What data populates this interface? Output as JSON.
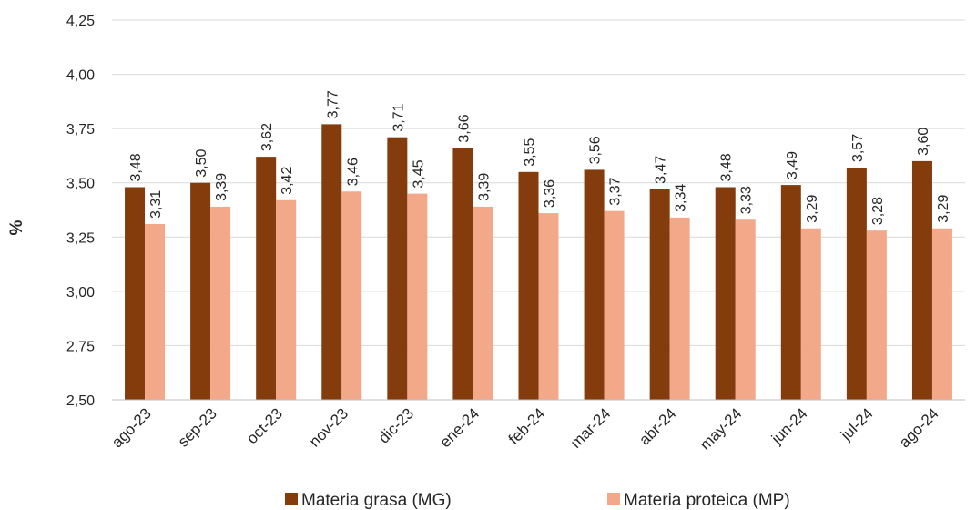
{
  "chart_data": {
    "type": "bar",
    "ylabel": "%",
    "ylim": [
      2.5,
      4.25
    ],
    "yticks": [
      "2,50",
      "2,75",
      "3,00",
      "3,25",
      "3,50",
      "3,75",
      "4,00",
      "4,25"
    ],
    "grid": true,
    "legend_position": "bottom",
    "categories": [
      "ago-23",
      "sep-23",
      "oct-23",
      "nov-23",
      "dic-23",
      "ene-24",
      "feb-24",
      "mar-24",
      "abr-24",
      "may-24",
      "jun-24",
      "jul-24",
      "ago-24"
    ],
    "series": [
      {
        "name": "Materia grasa (MG)",
        "color": "#843C0C",
        "values": [
          3.48,
          3.5,
          3.62,
          3.77,
          3.71,
          3.66,
          3.55,
          3.56,
          3.47,
          3.48,
          3.49,
          3.57,
          3.6
        ],
        "labels": [
          "3,48",
          "3,50",
          "3,62",
          "3,77",
          "3,71",
          "3,66",
          "3,55",
          "3,56",
          "3,47",
          "3,48",
          "3,49",
          "3,57",
          "3,60"
        ]
      },
      {
        "name": "Materia proteica (MP)",
        "color": "#F4A88A",
        "values": [
          3.31,
          3.39,
          3.42,
          3.46,
          3.45,
          3.39,
          3.36,
          3.37,
          3.34,
          3.33,
          3.29,
          3.28,
          3.29
        ],
        "labels": [
          "3,31",
          "3,39",
          "3,42",
          "3,46",
          "3,45",
          "3,39",
          "3,36",
          "3,37",
          "3,34",
          "3,33",
          "3,29",
          "3,28",
          "3,29"
        ]
      }
    ]
  }
}
